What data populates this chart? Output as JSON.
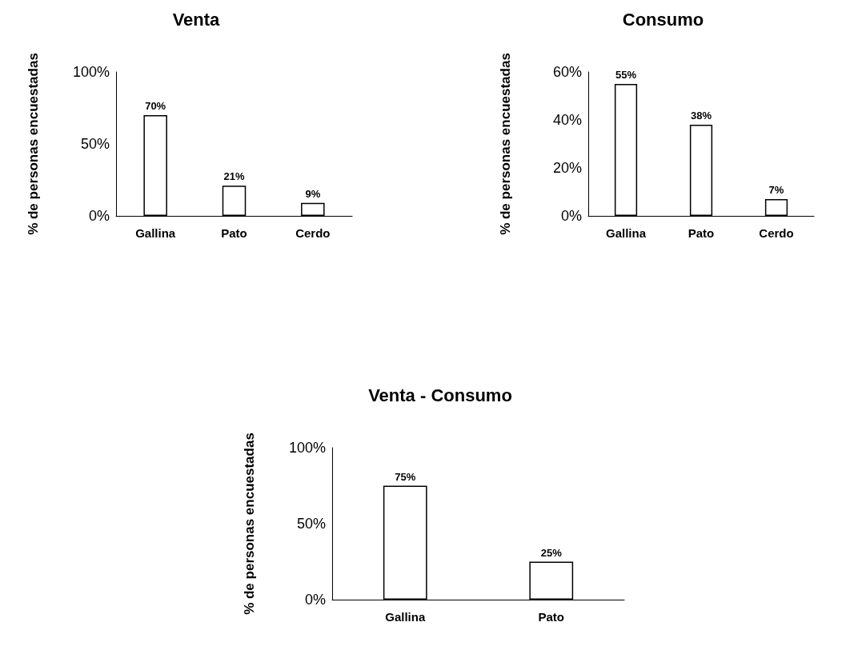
{
  "chart_data": [
    {
      "type": "bar",
      "title": "Venta",
      "ylabel": "% de personas encuestadas",
      "categories": [
        "Gallina",
        "Pato",
        "Cerdo"
      ],
      "values": [
        70,
        21,
        9
      ],
      "value_labels": [
        "70%",
        "21%",
        "9%"
      ],
      "color": "#ffffff",
      "ylim": [
        0,
        100
      ],
      "yticks": [
        {
          "value": 0,
          "label": "0%"
        },
        {
          "value": 50,
          "label": "50%"
        },
        {
          "value": 100,
          "label": "100%"
        }
      ]
    },
    {
      "type": "bar",
      "title": "Consumo",
      "ylabel": "% de personas encuestadas",
      "categories": [
        "Gallina",
        "Pato",
        "Cerdo"
      ],
      "values": [
        55,
        38,
        7
      ],
      "value_labels": [
        "55%",
        "38%",
        "7%"
      ],
      "color": "#ffffff",
      "ylim": [
        0,
        60
      ],
      "yticks": [
        {
          "value": 0,
          "label": "0%"
        },
        {
          "value": 20,
          "label": "20%"
        },
        {
          "value": 40,
          "label": "40%"
        },
        {
          "value": 60,
          "label": "60%"
        }
      ]
    },
    {
      "type": "bar",
      "title": "Venta - Consumo",
      "ylabel": "% de personas encuestadas",
      "categories": [
        "Gallina",
        "Pato"
      ],
      "values": [
        75,
        25
      ],
      "value_labels": [
        "75%",
        "25%"
      ],
      "color": "#ffffff",
      "ylim": [
        0,
        100
      ],
      "yticks": [
        {
          "value": 0,
          "label": "0%"
        },
        {
          "value": 50,
          "label": "50%"
        },
        {
          "value": 100,
          "label": "100%"
        }
      ]
    }
  ]
}
